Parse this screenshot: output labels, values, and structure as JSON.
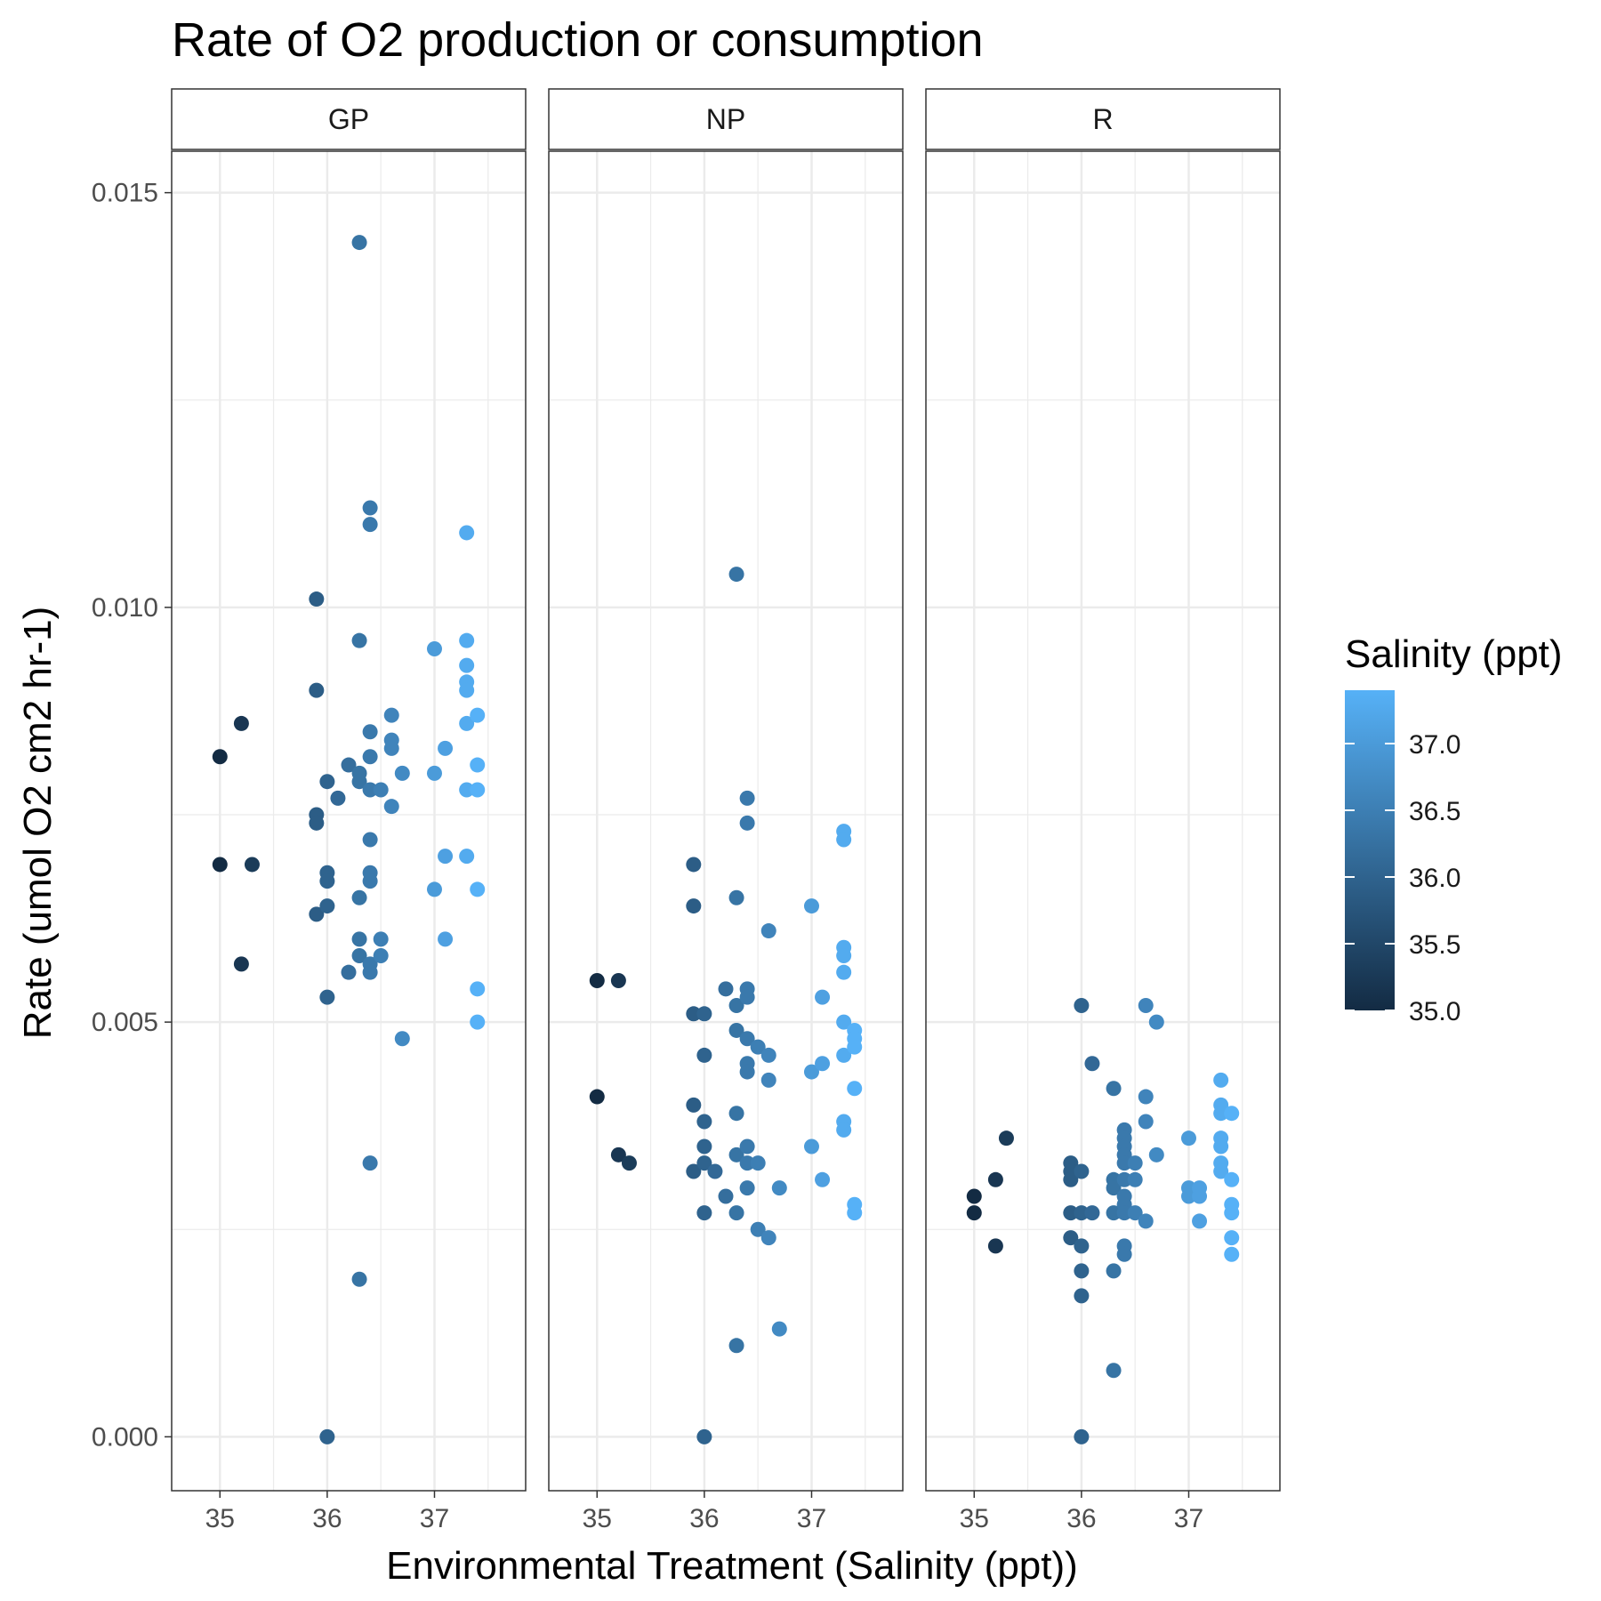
{
  "chart_data": {
    "type": "scatter",
    "title": "Rate of O2 production or consumption",
    "xlabel": "Environmental Treatment (Salinity (ppt))",
    "ylabel": "Rate (umol O2 cm2 hr-1)",
    "xlim": [
      34.55,
      37.85
    ],
    "ylim": [
      -0.00065,
      0.0155
    ],
    "x_ticks": [
      35,
      36,
      37
    ],
    "x_tick_labels": [
      "35",
      "36",
      "37"
    ],
    "y_ticks": [
      0,
      0.005,
      0.01,
      0.015
    ],
    "y_tick_labels": [
      "0.000",
      "0.005",
      "0.010",
      "0.015"
    ],
    "grid": true,
    "legend": {
      "title": "Salinity (ppt)",
      "placement": "right",
      "type": "colorbar",
      "range": [
        35.0,
        37.4
      ],
      "ticks": [
        35.0,
        35.5,
        36.0,
        36.5,
        37.0
      ],
      "tick_labels": [
        "35.0",
        "35.5",
        "36.0",
        "36.5",
        "37.0"
      ],
      "color_low": "#132b43",
      "color_high": "#56b1f7"
    },
    "panels": [
      {
        "label": "GP",
        "points": [
          [
            35.0,
            0.0082
          ],
          [
            35.2,
            0.0086
          ],
          [
            35.0,
            0.0069
          ],
          [
            35.3,
            0.0069
          ],
          [
            35.2,
            0.0057
          ],
          [
            35.9,
            0.0101
          ],
          [
            35.9,
            0.009
          ],
          [
            35.9,
            0.0075
          ],
          [
            35.9,
            0.0074
          ],
          [
            35.9,
            0.0063
          ],
          [
            36.0,
            0.0079
          ],
          [
            36.0,
            0.0068
          ],
          [
            36.0,
            0.0067
          ],
          [
            36.0,
            0.0064
          ],
          [
            36.0,
            0.0053
          ],
          [
            36.0,
            0.0
          ],
          [
            36.1,
            0.0077
          ],
          [
            36.2,
            0.0081
          ],
          [
            36.2,
            0.0056
          ],
          [
            36.3,
            0.0144
          ],
          [
            36.3,
            0.0096
          ],
          [
            36.3,
            0.008
          ],
          [
            36.3,
            0.0079
          ],
          [
            36.3,
            0.0065
          ],
          [
            36.3,
            0.006
          ],
          [
            36.3,
            0.0058
          ],
          [
            36.3,
            0.0019
          ],
          [
            36.4,
            0.0112
          ],
          [
            36.4,
            0.011
          ],
          [
            36.4,
            0.0085
          ],
          [
            36.4,
            0.0082
          ],
          [
            36.4,
            0.0078
          ],
          [
            36.4,
            0.0072
          ],
          [
            36.4,
            0.0068
          ],
          [
            36.4,
            0.0067
          ],
          [
            36.4,
            0.0057
          ],
          [
            36.4,
            0.0056
          ],
          [
            36.4,
            0.0033
          ],
          [
            36.5,
            0.0078
          ],
          [
            36.5,
            0.006
          ],
          [
            36.5,
            0.0058
          ],
          [
            36.6,
            0.0087
          ],
          [
            36.6,
            0.0084
          ],
          [
            36.6,
            0.0083
          ],
          [
            36.6,
            0.0076
          ],
          [
            36.7,
            0.008
          ],
          [
            36.7,
            0.0048
          ],
          [
            37.0,
            0.0095
          ],
          [
            37.0,
            0.008
          ],
          [
            37.0,
            0.0066
          ],
          [
            37.1,
            0.0083
          ],
          [
            37.1,
            0.007
          ],
          [
            37.1,
            0.006
          ],
          [
            37.3,
            0.0109
          ],
          [
            37.3,
            0.0096
          ],
          [
            37.3,
            0.0093
          ],
          [
            37.3,
            0.0091
          ],
          [
            37.3,
            0.009
          ],
          [
            37.3,
            0.0086
          ],
          [
            37.3,
            0.0078
          ],
          [
            37.3,
            0.007
          ],
          [
            37.4,
            0.0087
          ],
          [
            37.4,
            0.0081
          ],
          [
            37.4,
            0.0078
          ],
          [
            37.4,
            0.0066
          ],
          [
            37.4,
            0.0054
          ],
          [
            37.4,
            0.005
          ]
        ]
      },
      {
        "label": "NP",
        "points": [
          [
            35.0,
            0.0055
          ],
          [
            35.0,
            0.0041
          ],
          [
            35.2,
            0.0055
          ],
          [
            35.2,
            0.0034
          ],
          [
            35.3,
            0.0033
          ],
          [
            35.9,
            0.0069
          ],
          [
            35.9,
            0.0064
          ],
          [
            35.9,
            0.0051
          ],
          [
            35.9,
            0.004
          ],
          [
            35.9,
            0.0032
          ],
          [
            36.0,
            0.0051
          ],
          [
            36.0,
            0.0046
          ],
          [
            36.0,
            0.0038
          ],
          [
            36.0,
            0.0035
          ],
          [
            36.0,
            0.0033
          ],
          [
            36.0,
            0.0027
          ],
          [
            36.0,
            0.0
          ],
          [
            36.1,
            0.0032
          ],
          [
            36.2,
            0.0054
          ],
          [
            36.2,
            0.0029
          ],
          [
            36.3,
            0.0104
          ],
          [
            36.3,
            0.0065
          ],
          [
            36.3,
            0.0049
          ],
          [
            36.3,
            0.0039
          ],
          [
            36.3,
            0.0034
          ],
          [
            36.3,
            0.0027
          ],
          [
            36.3,
            0.0011
          ],
          [
            36.3,
            0.0052
          ],
          [
            36.4,
            0.0077
          ],
          [
            36.4,
            0.0074
          ],
          [
            36.4,
            0.0054
          ],
          [
            36.4,
            0.0053
          ],
          [
            36.4,
            0.0048
          ],
          [
            36.4,
            0.0045
          ],
          [
            36.4,
            0.0044
          ],
          [
            36.4,
            0.0035
          ],
          [
            36.4,
            0.0033
          ],
          [
            36.4,
            0.003
          ],
          [
            36.5,
            0.0047
          ],
          [
            36.5,
            0.0033
          ],
          [
            36.5,
            0.0025
          ],
          [
            36.6,
            0.0061
          ],
          [
            36.6,
            0.0046
          ],
          [
            36.6,
            0.0043
          ],
          [
            36.6,
            0.0024
          ],
          [
            36.7,
            0.003
          ],
          [
            36.7,
            0.0013
          ],
          [
            37.0,
            0.0064
          ],
          [
            37.0,
            0.0035
          ],
          [
            37.0,
            0.0044
          ],
          [
            37.1,
            0.0053
          ],
          [
            37.1,
            0.0045
          ],
          [
            37.1,
            0.0031
          ],
          [
            37.3,
            0.0073
          ],
          [
            37.3,
            0.0072
          ],
          [
            37.3,
            0.0059
          ],
          [
            37.3,
            0.0058
          ],
          [
            37.3,
            0.0056
          ],
          [
            37.3,
            0.005
          ],
          [
            37.3,
            0.0046
          ],
          [
            37.3,
            0.0038
          ],
          [
            37.3,
            0.0037
          ],
          [
            37.4,
            0.0049
          ],
          [
            37.4,
            0.0048
          ],
          [
            37.4,
            0.0047
          ],
          [
            37.4,
            0.0042
          ],
          [
            37.4,
            0.0028
          ],
          [
            37.4,
            0.0027
          ]
        ]
      },
      {
        "label": "R",
        "points": [
          [
            35.0,
            0.0029
          ],
          [
            35.0,
            0.0027
          ],
          [
            35.2,
            0.0031
          ],
          [
            35.2,
            0.0023
          ],
          [
            35.3,
            0.0036
          ],
          [
            35.9,
            0.0033
          ],
          [
            35.9,
            0.0032
          ],
          [
            35.9,
            0.0031
          ],
          [
            35.9,
            0.0027
          ],
          [
            35.9,
            0.0024
          ],
          [
            36.0,
            0.0052
          ],
          [
            36.0,
            0.0032
          ],
          [
            36.0,
            0.0027
          ],
          [
            36.0,
            0.0023
          ],
          [
            36.0,
            0.002
          ],
          [
            36.0,
            0.0017
          ],
          [
            36.0,
            0.0
          ],
          [
            36.1,
            0.0045
          ],
          [
            36.1,
            0.0027
          ],
          [
            36.3,
            0.0042
          ],
          [
            36.3,
            0.0031
          ],
          [
            36.3,
            0.003
          ],
          [
            36.3,
            0.0027
          ],
          [
            36.3,
            0.002
          ],
          [
            36.3,
            0.0008
          ],
          [
            36.4,
            0.0037
          ],
          [
            36.4,
            0.0036
          ],
          [
            36.4,
            0.0035
          ],
          [
            36.4,
            0.0034
          ],
          [
            36.4,
            0.0033
          ],
          [
            36.4,
            0.0031
          ],
          [
            36.4,
            0.0029
          ],
          [
            36.4,
            0.0028
          ],
          [
            36.4,
            0.0027
          ],
          [
            36.4,
            0.0023
          ],
          [
            36.4,
            0.0022
          ],
          [
            36.5,
            0.0033
          ],
          [
            36.5,
            0.0031
          ],
          [
            36.5,
            0.0027
          ],
          [
            36.6,
            0.0052
          ],
          [
            36.6,
            0.0041
          ],
          [
            36.6,
            0.0038
          ],
          [
            36.6,
            0.0026
          ],
          [
            36.7,
            0.005
          ],
          [
            36.7,
            0.0034
          ],
          [
            37.0,
            0.0036
          ],
          [
            37.0,
            0.003
          ],
          [
            37.0,
            0.0029
          ],
          [
            37.1,
            0.0029
          ],
          [
            37.1,
            0.003
          ],
          [
            37.1,
            0.0026
          ],
          [
            37.3,
            0.0043
          ],
          [
            37.3,
            0.004
          ],
          [
            37.3,
            0.0039
          ],
          [
            37.3,
            0.0036
          ],
          [
            37.3,
            0.0035
          ],
          [
            37.3,
            0.0033
          ],
          [
            37.3,
            0.0032
          ],
          [
            37.4,
            0.0039
          ],
          [
            37.4,
            0.0031
          ],
          [
            37.4,
            0.0028
          ],
          [
            37.4,
            0.0027
          ],
          [
            37.4,
            0.0024
          ],
          [
            37.4,
            0.0022
          ]
        ]
      }
    ]
  }
}
